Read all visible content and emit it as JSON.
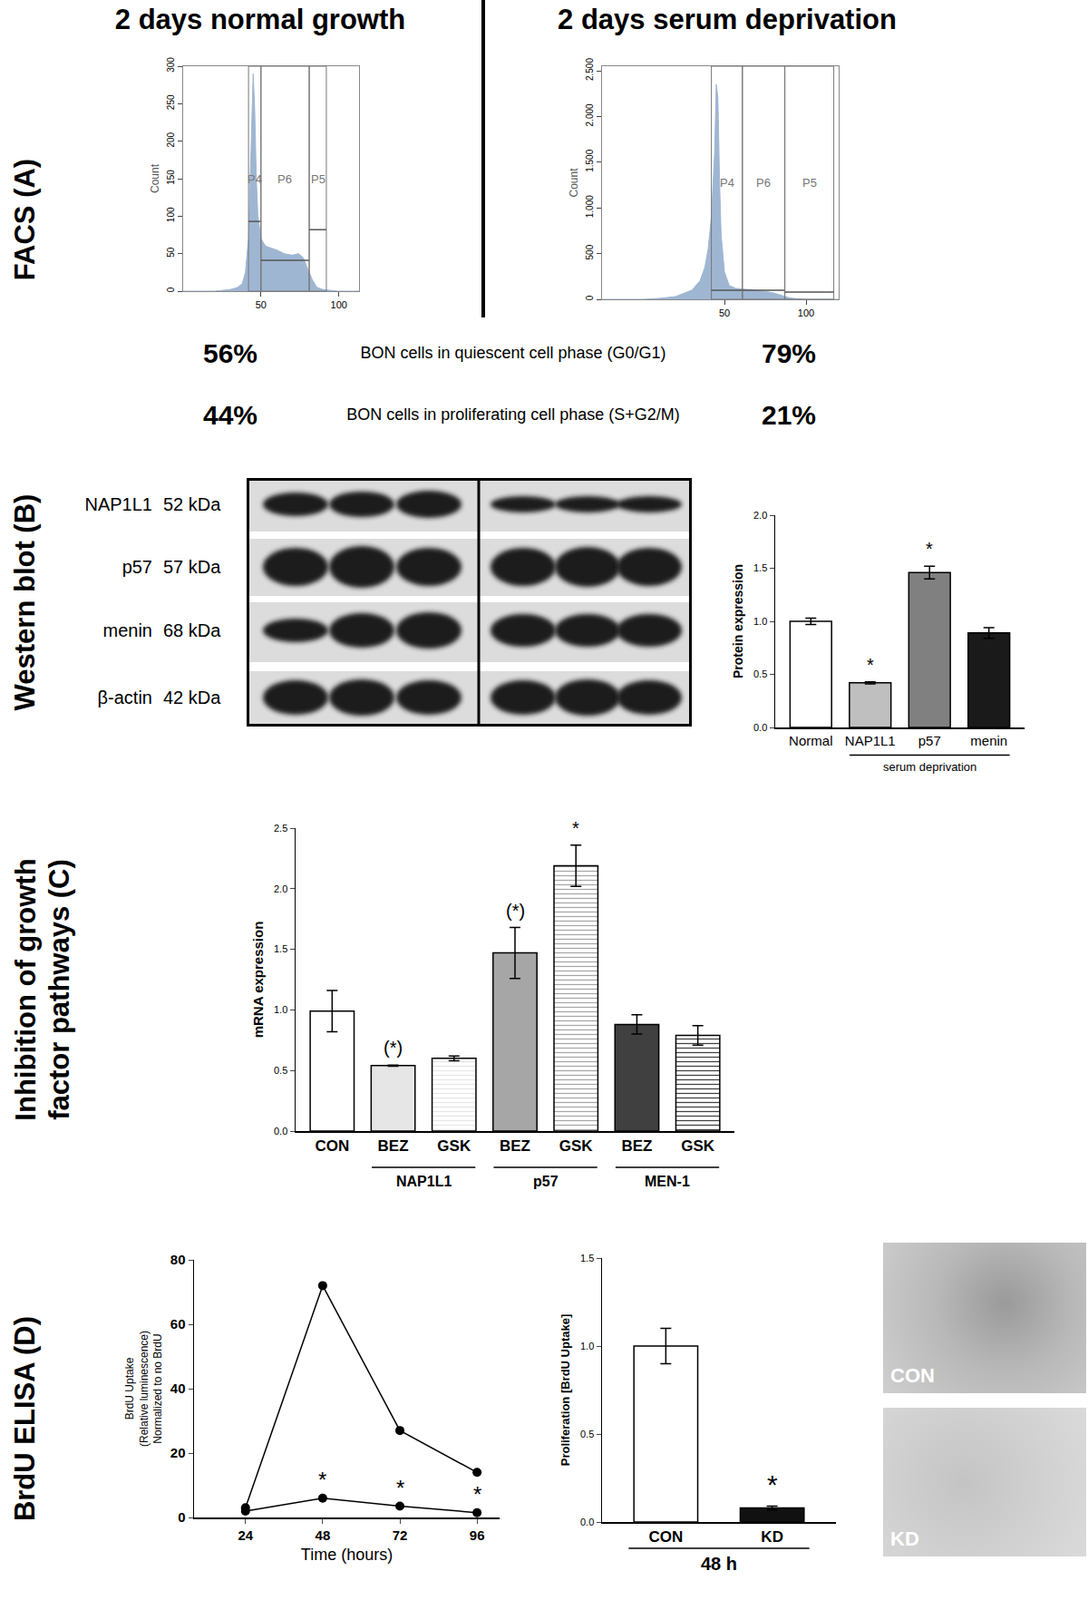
{
  "figure": {
    "row_labels": [
      [
        "FACS (A)"
      ],
      [
        "Western blot (B)"
      ],
      [
        "Inhibition of growth",
        "factor pathways (C)"
      ],
      [
        "BrdU ELISA (D)"
      ]
    ],
    "facs_titles": [
      "2 days normal growth",
      "2 days serum deprivation"
    ],
    "facs_summary": [
      {
        "label": "BON cells in quiescent cell phase (G0/G1)",
        "values": [
          "56%",
          "79%"
        ]
      },
      {
        "label": "BON cells in proliferating cell phase (S+G2/M)",
        "values": [
          "44%",
          "21%"
        ]
      }
    ],
    "western_blot": {
      "rows": [
        {
          "protein": "NAP1L1",
          "size": "52 kDa"
        },
        {
          "protein": "p57",
          "size": "57 kDa"
        },
        {
          "protein": "menin",
          "size": "68 kDa"
        },
        {
          "protein": "β-actin",
          "size": "42 kDa"
        }
      ]
    },
    "micrographs": [
      "CON",
      "KD"
    ]
  },
  "chart_data": [
    {
      "type": "area",
      "color": "#9fb6d3",
      "y_label": "Count",
      "x": [
        0,
        20,
        30,
        35,
        38,
        40,
        42,
        44,
        45,
        46,
        47,
        48,
        50,
        53,
        56,
        60,
        65,
        70,
        74,
        77,
        80,
        83,
        86,
        90,
        100,
        113
      ],
      "values": [
        0,
        0,
        2,
        5,
        10,
        25,
        70,
        200,
        290,
        240,
        150,
        100,
        70,
        60,
        58,
        55,
        50,
        48,
        50,
        45,
        30,
        15,
        5,
        2,
        0,
        0
      ],
      "xlim": [
        0,
        113
      ],
      "xticks": [
        50,
        100
      ],
      "ylim": [
        0,
        300
      ],
      "yticks": [
        0,
        50,
        100,
        150,
        200,
        250,
        300
      ],
      "gates": [
        {
          "name": "P4",
          "x0": 42,
          "x1": 50,
          "level": 93
        },
        {
          "name": "P6",
          "x0": 50,
          "x1": 81,
          "level": 41
        },
        {
          "name": "P5",
          "x0": 81,
          "x1": 92,
          "level": 82
        }
      ]
    },
    {
      "type": "area",
      "color": "#9fb6d3",
      "y_label": "Count",
      "x": [
        -25,
        0,
        10,
        20,
        30,
        35,
        38,
        40,
        42,
        44,
        45,
        46,
        47,
        48,
        50,
        53,
        57,
        62,
        68,
        74,
        80,
        85,
        90,
        95,
        100,
        120
      ],
      "values": [
        0,
        0,
        10,
        30,
        100,
        200,
        350,
        550,
        900,
        1600,
        2350,
        2200,
        1300,
        700,
        300,
        150,
        120,
        110,
        100,
        90,
        70,
        40,
        15,
        5,
        0,
        0
      ],
      "xlim": [
        -25,
        120
      ],
      "xticks": [
        50,
        100
      ],
      "ylim": [
        0,
        2550
      ],
      "yticks": [
        0,
        500,
        {
          "value": 1000,
          "label": "1.000"
        },
        {
          "value": 1500,
          "label": "1.500"
        },
        {
          "value": 2000,
          "label": "2.000"
        },
        {
          "value": 2500,
          "label": "2.500"
        }
      ],
      "gates": [
        {
          "name": "P4",
          "x0": 42,
          "x1": 61,
          "level": 100
        },
        {
          "name": "P6",
          "x0": 61,
          "x1": 87,
          "level": 100
        },
        {
          "name": "P5",
          "x0": 87,
          "x1": 117,
          "level": 80
        }
      ]
    },
    {
      "type": "bar",
      "y_label": "Protein expression",
      "categories": [
        "Normal",
        "NAP1L1",
        "p57",
        "menin"
      ],
      "values": [
        1.0,
        0.42,
        1.46,
        0.89
      ],
      "errors": [
        0.03,
        0.01,
        0.06,
        0.05
      ],
      "colors": [
        "#ffffff",
        "#bfbfbf",
        "#808080",
        "#1a1a1a"
      ],
      "significance": [
        null,
        "*",
        "*",
        null
      ],
      "groups": [
        null,
        "serum deprivation",
        "serum deprivation",
        "serum deprivation"
      ],
      "ylim": [
        0,
        2.0
      ],
      "yticks": [
        {
          "value": 0,
          "label": "0.0"
        },
        {
          "value": 0.5,
          "label": "0.5"
        },
        {
          "value": 1.0,
          "label": "1.0"
        },
        {
          "value": 1.5,
          "label": "1.5"
        },
        {
          "value": 2.0,
          "label": "2.0"
        }
      ]
    },
    {
      "type": "bar",
      "y_label": "mRNA expression",
      "categories": [
        "CON",
        "BEZ",
        "GSK",
        "BEZ",
        "GSK",
        "BEZ",
        "GSK"
      ],
      "values": [
        0.99,
        0.54,
        0.6,
        1.47,
        2.19,
        0.88,
        0.79
      ],
      "errors": [
        0.17,
        0.005,
        0.02,
        0.21,
        0.17,
        0.08,
        0.08
      ],
      "colors": [
        "#ffffff",
        "#e6e6e6",
        "#e6e6e6",
        "#a6a6a6",
        "#a6a6a6",
        "#404040",
        "#404040"
      ],
      "significance": [
        null,
        "(*)",
        null,
        "(*)",
        "*",
        null,
        null
      ],
      "groups": [
        null,
        "NAP1L1",
        "NAP1L1",
        "p57",
        "p57",
        "MEN-1",
        "MEN-1"
      ],
      "ylim": [
        0,
        2.5
      ],
      "yticks": [
        {
          "value": 0,
          "label": "0.0"
        },
        {
          "value": 0.5,
          "label": "0.5"
        },
        {
          "value": 1.0,
          "label": "1.0"
        },
        {
          "value": 1.5,
          "label": "1.5"
        },
        {
          "value": 2.0,
          "label": "2.0"
        },
        {
          "value": 2.5,
          "label": "2.5"
        }
      ]
    },
    {
      "type": "line",
      "x_label": "Time (hours)",
      "y_label": [
        "BrdU Uptake",
        "(Relative luminescence)",
        "Normalized to no BrdU"
      ],
      "x": [
        24,
        48,
        72,
        96
      ],
      "series": [
        {
          "color": "#000000",
          "marker": "circle",
          "values": [
            3,
            72,
            27,
            14
          ]
        },
        {
          "color": "#000000",
          "marker": "circle",
          "values": [
            2,
            6,
            3.5,
            1.5
          ],
          "significance": [
            null,
            "*",
            "*",
            "*"
          ]
        }
      ],
      "xlim": [
        8,
        103
      ],
      "xticks": [
        24,
        48,
        72,
        96
      ],
      "ylim": [
        0,
        80
      ],
      "yticks": [
        0,
        20,
        40,
        60,
        80
      ]
    },
    {
      "type": "bar",
      "y_label": "Proliferation [BrdU Uptake]",
      "categories": [
        "CON",
        "KD"
      ],
      "values": [
        1.0,
        0.08
      ],
      "errors": [
        0.1,
        0.01
      ],
      "colors": [
        "#ffffff",
        "#111111"
      ],
      "significance": [
        null,
        "*"
      ],
      "groups": [
        "48 h",
        "48 h"
      ],
      "ylim": [
        0,
        1.5
      ],
      "yticks": [
        {
          "value": 0,
          "label": "0.0"
        },
        {
          "value": 0.5,
          "label": "0.5"
        },
        {
          "value": 1.0,
          "label": "1.0"
        },
        {
          "value": 1.5,
          "label": "1.5"
        }
      ]
    }
  ]
}
